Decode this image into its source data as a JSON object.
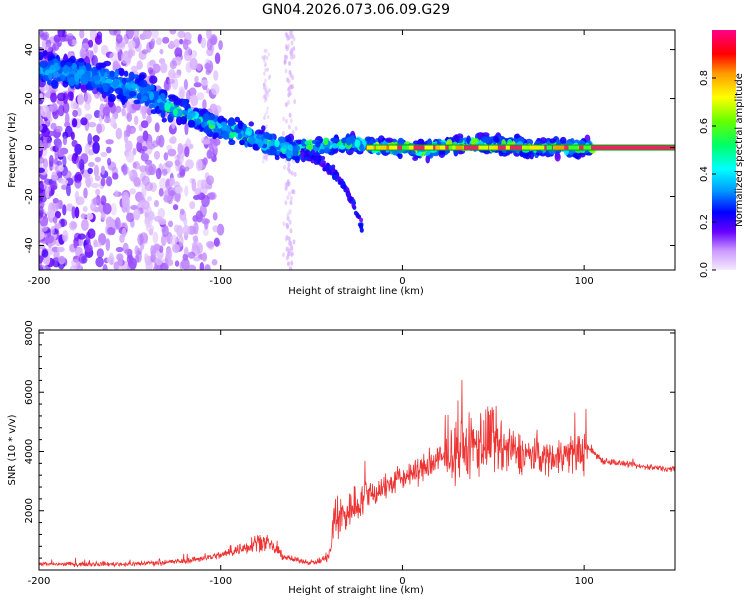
{
  "title": "GN04.2026.073.06.09.G29",
  "colors": {
    "snr_line": "#ee3333",
    "zero_band_edge": "#00aa00",
    "zero_band_core": "#ee2266"
  },
  "chart_data": [
    {
      "name": "spectrogram",
      "type": "heatmap",
      "xlabel": "Height of straight line (km)",
      "ylabel": "Frequency (Hz)",
      "xlim": [
        -200,
        150
      ],
      "ylim": [
        -50,
        48
      ],
      "xticks": [
        -200,
        -100,
        0,
        100
      ],
      "yticks": [
        -40,
        -20,
        0,
        20,
        40
      ],
      "ridge": {
        "x": [
          -200,
          -180,
          -160,
          -140,
          -130,
          -120,
          -110,
          -100,
          -90,
          -80,
          -70,
          -60,
          -50,
          -40,
          -30,
          -20,
          -10,
          0,
          10,
          20,
          30,
          40,
          50,
          60,
          70,
          80,
          90,
          100,
          150
        ],
        "y": [
          32,
          30,
          27,
          22,
          17,
          14,
          11,
          8,
          6,
          3,
          1,
          -1,
          0,
          1,
          2,
          1,
          0,
          0,
          -1,
          0,
          1,
          2,
          1,
          1,
          0,
          0,
          0,
          0,
          0
        ]
      },
      "branch": {
        "x": [
          -55,
          -45,
          -38,
          -32,
          -27,
          -22
        ],
        "y": [
          -2,
          -6,
          -10,
          -16,
          -23,
          -33
        ]
      },
      "colorbar": {
        "label": "Normalized spectral amplitude",
        "range": [
          0.0,
          1.0
        ],
        "ticks": [
          "0.0",
          "0.2",
          "0.4",
          "0.6",
          "0.8"
        ],
        "tick_values": [
          0.0,
          0.2,
          0.4,
          0.6,
          0.8
        ]
      }
    },
    {
      "name": "snr",
      "type": "line",
      "xlabel": "Height of straight line (km)",
      "ylabel": "SNR (10 * v/v)",
      "xlim": [
        -200,
        150
      ],
      "ylim": [
        0,
        8100
      ],
      "xticks": [
        -200,
        -100,
        0,
        100
      ],
      "yticks": [
        2000,
        4000,
        6000,
        8000
      ],
      "envelope": {
        "x": [
          -200,
          -150,
          -120,
          -100,
          -90,
          -85,
          -80,
          -75,
          -70,
          -65,
          -60,
          -55,
          -50,
          -45,
          -40,
          -38,
          -30,
          -20,
          -10,
          0,
          10,
          20,
          30,
          40,
          45,
          50,
          55,
          60,
          70,
          80,
          90,
          100,
          103,
          110,
          130,
          150
        ],
        "mean": [
          200,
          200,
          300,
          500,
          700,
          800,
          1000,
          900,
          700,
          450,
          350,
          300,
          250,
          300,
          500,
          1500,
          2000,
          2500,
          2800,
          3100,
          3400,
          3700,
          4000,
          4200,
          4400,
          4300,
          4100,
          4000,
          3900,
          3800,
          3900,
          4000,
          4100,
          3700,
          3500,
          3400
        ],
        "spread": [
          100,
          120,
          150,
          200,
          300,
          400,
          500,
          400,
          300,
          200,
          150,
          120,
          120,
          150,
          400,
          1400,
          1100,
          900,
          700,
          600,
          700,
          900,
          1400,
          1800,
          2000,
          1900,
          1500,
          1200,
          900,
          900,
          1000,
          1100,
          300,
          200,
          150,
          150
        ]
      }
    }
  ]
}
